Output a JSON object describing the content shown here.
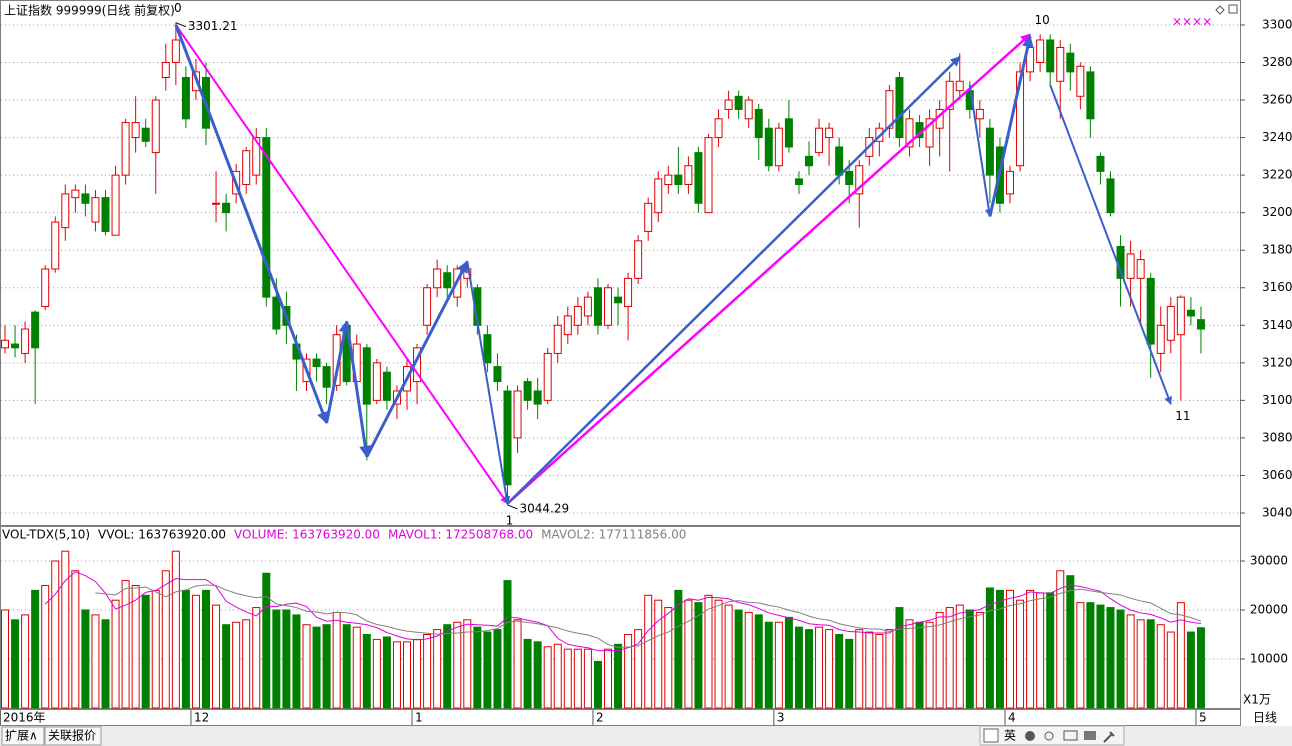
{
  "chart_data": {
    "type": "candlestick",
    "title": "上证指数 999999(日线 前复权)",
    "categories": [
      "2016年",
      null,
      null,
      null,
      null,
      null,
      null,
      null,
      null,
      null,
      null,
      null,
      null,
      null,
      null,
      null,
      null,
      null,
      null,
      "12",
      null,
      null,
      null,
      null,
      null,
      null,
      null,
      null,
      null,
      null,
      null,
      null,
      null,
      null,
      null,
      null,
      null,
      null,
      null,
      null,
      null,
      "1",
      null,
      null,
      null,
      null,
      null,
      null,
      null,
      null,
      null,
      null,
      null,
      null,
      null,
      null,
      null,
      null,
      null,
      "2",
      null,
      null,
      null,
      null,
      null,
      null,
      null,
      null,
      null,
      null,
      null,
      null,
      null,
      null,
      null,
      null,
      null,
      "3",
      null,
      null,
      null,
      null,
      null,
      null,
      null,
      null,
      null,
      null,
      null,
      null,
      null,
      null,
      null,
      null,
      null,
      null,
      null,
      null,
      null,
      null,
      "4",
      null,
      null,
      null,
      null,
      null,
      null,
      null,
      null,
      null,
      null,
      null,
      null,
      null,
      null,
      null,
      null,
      null,
      null,
      "5"
    ],
    "open": [
      3128,
      3130,
      3125,
      3147,
      3150,
      3170,
      3192,
      3208,
      3210,
      3195,
      3208,
      3188,
      3220,
      3240,
      3245,
      3232,
      3272,
      3280,
      3272,
      3265,
      3272,
      3205,
      3205,
      3210,
      3215,
      3220,
      3240,
      3155,
      3150,
      3130,
      3110,
      3122,
      3118,
      3108,
      3140,
      3110,
      3128,
      3100,
      3115,
      3098,
      3105,
      3110,
      3140,
      3160,
      3168,
      3155,
      3165,
      3160,
      3135,
      3118,
      3105,
      3080,
      3110,
      3105,
      3100,
      3125,
      3135,
      3140,
      3145,
      3160,
      3140,
      3155,
      3150,
      3165,
      3190,
      3200,
      3215,
      3220,
      3215,
      3232,
      3200,
      3240,
      3255,
      3262,
      3250,
      3255,
      3245,
      3225,
      3250,
      3218,
      3230,
      3232,
      3240,
      3235,
      3222,
      3210,
      3230,
      3238,
      3245,
      3272,
      3235,
      3248,
      3235,
      3245,
      3255,
      3265,
      3265,
      3250,
      3245,
      3235,
      3210,
      3225,
      3275,
      3280,
      3292,
      3270,
      3285,
      3262,
      3275,
      3230,
      3218,
      3182,
      3165,
      3165,
      3165,
      3125,
      3132,
      3135,
      3148,
      3143
    ],
    "high": [
      3140,
      3140,
      3142,
      3148,
      3172,
      3198,
      3215,
      3215,
      3215,
      3212,
      3212,
      3225,
      3250,
      3262,
      3250,
      3262,
      3290,
      3301.21,
      3278,
      3282,
      3280,
      3222,
      3210,
      3226,
      3235,
      3245,
      3245,
      3165,
      3158,
      3135,
      3125,
      3125,
      3120,
      3140,
      3142,
      3135,
      3130,
      3122,
      3118,
      3108,
      3122,
      3130,
      3162,
      3175,
      3172,
      3172,
      3174,
      3162,
      3140,
      3125,
      3108,
      3108,
      3112,
      3112,
      3128,
      3145,
      3150,
      3155,
      3158,
      3165,
      3162,
      3160,
      3168,
      3188,
      3208,
      3222,
      3225,
      3235,
      3230,
      3235,
      3242,
      3255,
      3265,
      3265,
      3262,
      3258,
      3250,
      3248,
      3260,
      3222,
      3238,
      3250,
      3248,
      3240,
      3228,
      3228,
      3245,
      3248,
      3268,
      3275,
      3255,
      3252,
      3255,
      3260,
      3275,
      3285,
      3270,
      3260,
      3250,
      3240,
      3225,
      3280,
      3292,
      3295,
      3295,
      3292,
      3290,
      3280,
      3278,
      3232,
      3222,
      3188,
      3185,
      3180,
      3168,
      3150,
      3155,
      3156,
      3155,
      3150
    ],
    "low": [
      3125,
      3123,
      3120,
      3098,
      3148,
      3168,
      3185,
      3200,
      3198,
      3190,
      3188,
      3188,
      3215,
      3232,
      3235,
      3210,
      3265,
      3268,
      3245,
      3260,
      3236,
      3195,
      3190,
      3205,
      3210,
      3215,
      3150,
      3135,
      3130,
      3105,
      3105,
      3110,
      3098,
      3105,
      3108,
      3105,
      3068,
      3098,
      3095,
      3090,
      3095,
      3098,
      3135,
      3155,
      3155,
      3150,
      3160,
      3135,
      3115,
      3105,
      3044.29,
      3072,
      3095,
      3090,
      3098,
      3120,
      3130,
      3135,
      3140,
      3135,
      3138,
      3140,
      3132,
      3162,
      3185,
      3195,
      3210,
      3210,
      3210,
      3200,
      3200,
      3235,
      3250,
      3250,
      3245,
      3228,
      3222,
      3222,
      3232,
      3210,
      3220,
      3230,
      3225,
      3215,
      3205,
      3192,
      3225,
      3230,
      3240,
      3235,
      3230,
      3235,
      3225,
      3230,
      3222,
      3260,
      3250,
      3240,
      3205,
      3200,
      3205,
      3222,
      3270,
      3275,
      3268,
      3250,
      3265,
      3255,
      3240,
      3215,
      3198,
      3150,
      3150,
      3140,
      3112,
      3115,
      3125,
      3100,
      3140,
      3125
    ],
    "close": [
      3132,
      3128,
      3138,
      3128,
      3170,
      3195,
      3210,
      3212,
      3205,
      3208,
      3190,
      3220,
      3248,
      3248,
      3238,
      3260,
      3280,
      3292,
      3250,
      3275,
      3245,
      3205,
      3200,
      3222,
      3233,
      3240,
      3155,
      3138,
      3140,
      3122,
      3122,
      3118,
      3107,
      3135,
      3110,
      3130,
      3098,
      3120,
      3100,
      3105,
      3118,
      3128,
      3160,
      3170,
      3160,
      3170,
      3170,
      3140,
      3120,
      3110,
      3055,
      3105,
      3100,
      3098,
      3125,
      3140,
      3145,
      3150,
      3155,
      3140,
      3160,
      3152,
      3165,
      3185,
      3205,
      3218,
      3220,
      3215,
      3225,
      3205,
      3240,
      3250,
      3260,
      3255,
      3260,
      3240,
      3225,
      3245,
      3235,
      3215,
      3225,
      3245,
      3245,
      3220,
      3215,
      3225,
      3240,
      3245,
      3265,
      3240,
      3250,
      3240,
      3250,
      3255,
      3270,
      3270,
      3255,
      3255,
      3220,
      3205,
      3222,
      3275,
      3288,
      3292,
      3275,
      3288,
      3275,
      3278,
      3250,
      3222,
      3200,
      3165,
      3178,
      3175,
      3130,
      3140,
      3150,
      3155,
      3145,
      3138
    ],
    "up_color": "#e00000",
    "down_color": "#008000",
    "ylim": [
      3033.6,
      3313.3
    ],
    "yticks": [
      3040,
      3060,
      3080,
      3100,
      3120,
      3140,
      3160,
      3180,
      3200,
      3220,
      3240,
      3260,
      3280,
      3300
    ],
    "grid": true,
    "annotations": [
      {
        "text": "0",
        "index": 17,
        "at": "high"
      },
      {
        "text": "1",
        "index": 50,
        "at": "low"
      },
      {
        "text": "10",
        "index": 103,
        "at": "high"
      },
      {
        "text": "11",
        "index": 117,
        "at": "low"
      }
    ],
    "arrows": [
      {
        "from": [
          17,
          3300
        ],
        "to": [
          50,
          3045
        ],
        "color": "#ff00ff",
        "width": 2
      },
      {
        "from": [
          50,
          3045
        ],
        "to": [
          102,
          3295
        ],
        "color": "#ff00ff",
        "width": 2.5
      },
      {
        "from": [
          17,
          3300
        ],
        "to": [
          32,
          3088
        ],
        "color": "#3a5fcd",
        "width": 3
      },
      {
        "from": [
          32,
          3088
        ],
        "to": [
          34,
          3142
        ],
        "color": "#3a5fcd",
        "width": 3
      },
      {
        "from": [
          34,
          3142
        ],
        "to": [
          36,
          3070
        ],
        "color": "#3a5fcd",
        "width": 3
      },
      {
        "from": [
          36,
          3070
        ],
        "to": [
          46,
          3174
        ],
        "color": "#3a5fcd",
        "width": 3
      },
      {
        "from": [
          46,
          3174
        ],
        "to": [
          50,
          3045
        ],
        "color": "#3a5fcd",
        "width": 2
      },
      {
        "from": [
          50,
          3045
        ],
        "to": [
          95,
          3283
        ],
        "color": "#3a5fcd",
        "width": 2.5
      },
      {
        "from": [
          96,
          3268
        ],
        "to": [
          98,
          3198
        ],
        "color": "#3a5fcd",
        "width": 2
      },
      {
        "from": [
          98,
          3198
        ],
        "to": [
          102,
          3294
        ],
        "color": "#3a5fcd",
        "width": 3
      },
      {
        "from": [
          104,
          3268
        ],
        "to": [
          116,
          3098
        ],
        "color": "#3a5fcd",
        "width": 2
      }
    ],
    "volume": {
      "header": [
        {
          "text": "VOL-TDX(5,10)",
          "color": "#000000"
        },
        {
          "text": "VVOL: 163763920.00",
          "color": "#000000"
        },
        {
          "text": "VOLUME: 163763920.00",
          "color": "#e000e0"
        },
        {
          "text": "MAVOL1: 172508768.00",
          "color": "#e000e0"
        },
        {
          "text": "MAVOL2: 177111856.00",
          "color": "#808080"
        }
      ],
      "values": [
        20000,
        18000,
        19000,
        24000,
        25000,
        30000,
        32000,
        28000,
        20000,
        19000,
        18000,
        22000,
        26000,
        25000,
        23000,
        24000,
        28000,
        32000,
        24000,
        23000,
        24000,
        21000,
        17000,
        17500,
        18000,
        20500,
        27500,
        20000,
        20000,
        19000,
        17000,
        16500,
        17000,
        19500,
        17000,
        16500,
        15000,
        14000,
        14500,
        13500,
        13500,
        14000,
        15000,
        16000,
        17000,
        17500,
        18000,
        16500,
        15500,
        16000,
        26000,
        18000,
        14000,
        13500,
        12500,
        13000,
        12000,
        12000,
        12000,
        9500,
        12000,
        13000,
        15000,
        16000,
        23000,
        22000,
        20500,
        24000,
        22000,
        21500,
        23000,
        22000,
        21000,
        20000,
        19500,
        19000,
        17500,
        17500,
        18500,
        16500,
        16000,
        16500,
        16000,
        15000,
        14000,
        16000,
        15500,
        15000,
        16000,
        20500,
        18000,
        17500,
        17500,
        19500,
        20500,
        21000,
        20000,
        19500,
        24500,
        24000,
        24000,
        22000,
        24000,
        23500,
        23500,
        28000,
        27000,
        21500,
        21500,
        21000,
        20500,
        20000,
        19000,
        18000,
        18000,
        17000,
        15500,
        21500,
        15500,
        16376.392
      ],
      "mavol1": {
        "color": "#e000e0",
        "values": [
          null,
          null,
          null,
          null,
          21200,
          23200,
          26000,
          27800,
          27000,
          25800,
          23400,
          20200,
          21000,
          22000,
          23600,
          24000,
          25200,
          26400,
          26200,
          26200,
          26200,
          24800,
          21800,
          20600,
          19600,
          18800,
          20700,
          20700,
          21200,
          21400,
          20700,
          18500,
          17700,
          17900,
          17500,
          17300,
          17000,
          16400,
          15400,
          14700,
          14100,
          13900,
          14100,
          14700,
          15700,
          16500,
          17100,
          17000,
          16900,
          16700,
          18500,
          18400,
          17900,
          17500,
          16800,
          14200,
          13000,
          12600,
          12300,
          11700,
          11700,
          11700,
          12300,
          13100,
          15800,
          17800,
          19300,
          21100,
          22300,
          22000,
          22600,
          22500,
          22300,
          21500,
          21100,
          20300,
          19400,
          18900,
          18400,
          17900,
          17200,
          17000,
          16900,
          16000,
          15600,
          15500,
          15300,
          15300,
          15300,
          16600,
          17000,
          17500,
          17900,
          18600,
          18600,
          19400,
          19700,
          20100,
          21100,
          21800,
          22400,
          22800,
          23700,
          23500,
          23400,
          24400,
          25100,
          24800,
          24300,
          23800,
          22300,
          21000,
          20000,
          19400,
          19100,
          18400,
          17500,
          18000,
          17500,
          17250.8768
        ]
      },
      "mavol2": {
        "color": "#808080",
        "values": [
          null,
          null,
          null,
          null,
          null,
          null,
          null,
          null,
          null,
          23500,
          23300,
          23100,
          24400,
          24500,
          24700,
          23700,
          22700,
          23700,
          24100,
          24900,
          25100,
          25000,
          24100,
          23400,
          22900,
          22500,
          22750,
          21250,
          20900,
          20500,
          19750,
          19600,
          19200,
          19550,
          19450,
          19000,
          17750,
          17050,
          16650,
          16100,
          15700,
          15450,
          15250,
          15050,
          15200,
          15300,
          15500,
          15550,
          15800,
          16200,
          17500,
          17750,
          17450,
          17200,
          16750,
          16350,
          15700,
          15250,
          14900,
          14250,
          12950,
          12350,
          12450,
          12700,
          13750,
          14750,
          15500,
          16700,
          17700,
          18900,
          20200,
          20900,
          21700,
          21900,
          21550,
          21450,
          20950,
          20600,
          19950,
          19500,
          18750,
          18200,
          17900,
          17200,
          16750,
          16350,
          16150,
          16100,
          15650,
          16100,
          16250,
          16400,
          16600,
          16950,
          17600,
          18200,
          18600,
          19000,
          19850,
          20200,
          20900,
          21250,
          21900,
          22300,
          22600,
          23400,
          23950,
          24250,
          23900,
          23600,
          23350,
          23050,
          22400,
          21850,
          21450,
          20350,
          19250,
          19000,
          18450,
          17711.1856
        ]
      },
      "ylim": [
        0,
        36735
      ],
      "yticks": [
        10000,
        20000,
        30000
      ],
      "unit_label": "X1万"
    }
  },
  "ui": {
    "period": "日线",
    "tabs": [
      "扩展∧",
      "关联报价"
    ],
    "corner_marks": "××××",
    "input_mode": "英"
  }
}
